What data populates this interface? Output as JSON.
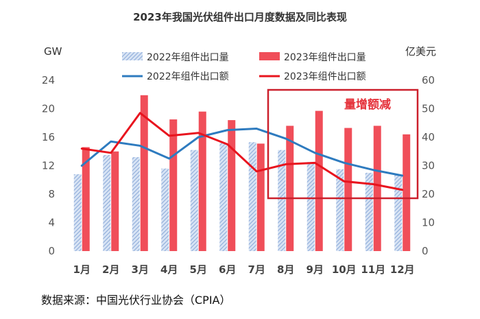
{
  "chart_data": {
    "type": "bar",
    "title": "2023年我国光伏组件出口月度数据及同比表现",
    "left_unit": "GW",
    "right_unit": "亿美元",
    "categories": [
      "1月",
      "2月",
      "3月",
      "4月",
      "5月",
      "6月",
      "7月",
      "8月",
      "9月",
      "10月",
      "11月",
      "12月"
    ],
    "y_left": {
      "min": 0,
      "max": 24,
      "ticks": [
        0,
        4,
        8,
        12,
        16,
        20,
        24
      ]
    },
    "y_right": {
      "min": 0,
      "max": 60,
      "ticks": [
        0,
        10,
        20,
        30,
        40,
        50,
        60
      ]
    },
    "series": [
      {
        "name": "2022年组件出口量",
        "kind": "bar",
        "axis": "left",
        "color": "#9db8e0",
        "values": [
          10.8,
          13.5,
          13.2,
          11.6,
          14.2,
          15.2,
          15.3,
          14.2,
          12.5,
          11.5,
          11.0,
          10.8
        ]
      },
      {
        "name": "2023年组件出口量",
        "kind": "bar",
        "axis": "left",
        "color": "#f04e59",
        "values": [
          14.6,
          14.0,
          21.9,
          18.5,
          19.6,
          18.4,
          15.1,
          17.6,
          19.7,
          17.3,
          17.6,
          16.4
        ]
      },
      {
        "name": "2022年组件出口额",
        "kind": "line",
        "axis": "right",
        "color": "#2e7bbf",
        "values": [
          30,
          38.5,
          37,
          32.5,
          40,
          42.5,
          43,
          39.5,
          34.5,
          31,
          28.5,
          26.5
        ]
      },
      {
        "name": "2023年组件出口额",
        "kind": "line",
        "axis": "right",
        "color": "#e8141e",
        "values": [
          36,
          34.5,
          48.5,
          40.5,
          41.5,
          37.5,
          28,
          30.5,
          31,
          24.5,
          23.5,
          21.5
        ]
      }
    ],
    "annotation": {
      "text": "量增额减",
      "color": "#e5323b"
    },
    "source": "数据来源：中国光伏行业协会（CPIA）"
  }
}
